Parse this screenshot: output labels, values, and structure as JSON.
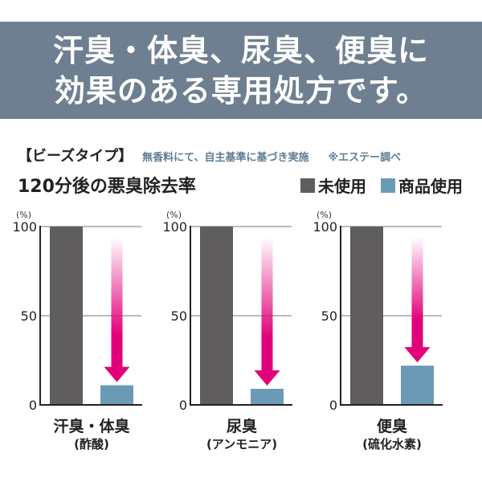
{
  "banner": {
    "line1": "汗臭・体臭、尿臭、便臭に",
    "line2": "効果のある専用処方です。"
  },
  "subheader": {
    "tag": "【ビーズタイプ】",
    "note": "無香料にて、自主基準に基づき実施",
    "source": "※エステー調べ"
  },
  "chart_data": {
    "type": "bar",
    "title": "120分後の悪臭除去率",
    "unit_label": "(%)",
    "ylim": [
      0,
      100
    ],
    "yticks": [
      0,
      50,
      100
    ],
    "grid": true,
    "legend_position": "top-right",
    "series": [
      {
        "name": "未使用",
        "color": "#5f5d5e",
        "values": [
          100,
          100,
          100
        ]
      },
      {
        "name": "商品使用",
        "color": "#6b9ab6",
        "values": [
          11,
          9,
          22
        ]
      }
    ],
    "categories": [
      {
        "label": "汗臭・体臭",
        "sublabel": "(酢酸)"
      },
      {
        "label": "尿臭",
        "sublabel": "(アンモニア)"
      },
      {
        "label": "便臭",
        "sublabel": "(硫化水素)"
      }
    ],
    "arrow_color": "#e2007a"
  }
}
